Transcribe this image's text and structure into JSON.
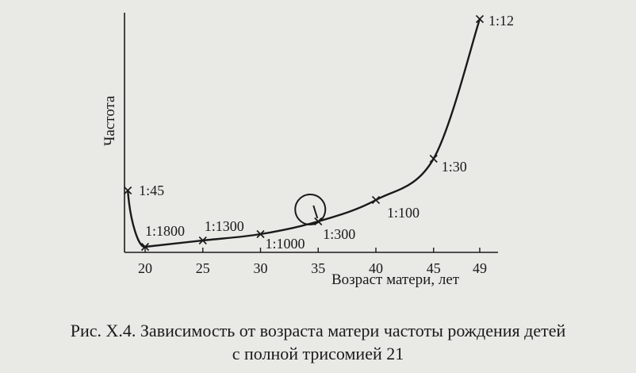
{
  "chart_data": {
    "type": "line",
    "xlabel": "Возраст матери, лет",
    "ylabel": "Частота",
    "x_ticks": [
      20,
      25,
      30,
      35,
      40,
      45,
      49
    ],
    "xlim": [
      18,
      49
    ],
    "series": [
      {
        "points": [
          {
            "x": 18.5,
            "y": 0.0222,
            "label": "1:45"
          },
          {
            "x": 20,
            "y": 0.00056,
            "label": "1:1800"
          },
          {
            "x": 25,
            "y": 0.00077,
            "label": "1:1300"
          },
          {
            "x": 30,
            "y": 0.001,
            "label": "1:1000"
          },
          {
            "x": 35,
            "y": 0.00333,
            "label": "1:300"
          },
          {
            "x": 40,
            "y": 0.01,
            "label": "1:100"
          },
          {
            "x": 45,
            "y": 0.0333,
            "label": "1:30"
          },
          {
            "x": 49,
            "y": 0.0833,
            "label": "1:12"
          }
        ]
      }
    ],
    "annotations": [
      {
        "type": "circle",
        "at_x": 35,
        "note": "highlighted point"
      }
    ],
    "grid": false
  },
  "caption": {
    "line1": "Рис. X.4. Зависимость от возраста матери частоты рождения детей",
    "line2": "с полной трисомией 21"
  }
}
